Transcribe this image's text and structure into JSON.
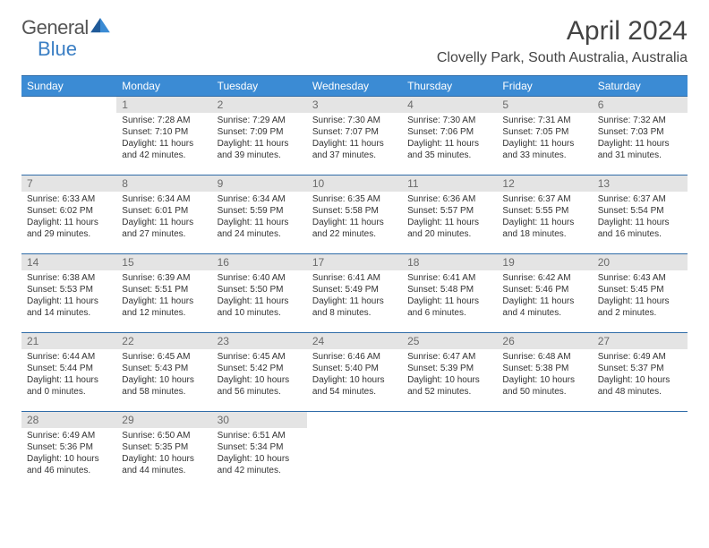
{
  "logo": {
    "text1": "General",
    "text2": "Blue"
  },
  "title": "April 2024",
  "subtitle": "Clovelly Park, South Australia, Australia",
  "weekdays": [
    "Sunday",
    "Monday",
    "Tuesday",
    "Wednesday",
    "Thursday",
    "Friday",
    "Saturday"
  ],
  "colors": {
    "header_bg": "#3b8bd4",
    "header_text": "#ffffff",
    "cell_border": "#2f6ca8",
    "daynum_bg": "#e4e4e4",
    "daynum_text": "#6b6b6b",
    "logo_accent": "#3b7fc4",
    "body_text": "#333333"
  },
  "grid": [
    [
      {
        "n": "",
        "sr": "",
        "ss": "",
        "dl": ""
      },
      {
        "n": "1",
        "sr": "Sunrise: 7:28 AM",
        "ss": "Sunset: 7:10 PM",
        "dl": "Daylight: 11 hours and 42 minutes."
      },
      {
        "n": "2",
        "sr": "Sunrise: 7:29 AM",
        "ss": "Sunset: 7:09 PM",
        "dl": "Daylight: 11 hours and 39 minutes."
      },
      {
        "n": "3",
        "sr": "Sunrise: 7:30 AM",
        "ss": "Sunset: 7:07 PM",
        "dl": "Daylight: 11 hours and 37 minutes."
      },
      {
        "n": "4",
        "sr": "Sunrise: 7:30 AM",
        "ss": "Sunset: 7:06 PM",
        "dl": "Daylight: 11 hours and 35 minutes."
      },
      {
        "n": "5",
        "sr": "Sunrise: 7:31 AM",
        "ss": "Sunset: 7:05 PM",
        "dl": "Daylight: 11 hours and 33 minutes."
      },
      {
        "n": "6",
        "sr": "Sunrise: 7:32 AM",
        "ss": "Sunset: 7:03 PM",
        "dl": "Daylight: 11 hours and 31 minutes."
      }
    ],
    [
      {
        "n": "7",
        "sr": "Sunrise: 6:33 AM",
        "ss": "Sunset: 6:02 PM",
        "dl": "Daylight: 11 hours and 29 minutes."
      },
      {
        "n": "8",
        "sr": "Sunrise: 6:34 AM",
        "ss": "Sunset: 6:01 PM",
        "dl": "Daylight: 11 hours and 27 minutes."
      },
      {
        "n": "9",
        "sr": "Sunrise: 6:34 AM",
        "ss": "Sunset: 5:59 PM",
        "dl": "Daylight: 11 hours and 24 minutes."
      },
      {
        "n": "10",
        "sr": "Sunrise: 6:35 AM",
        "ss": "Sunset: 5:58 PM",
        "dl": "Daylight: 11 hours and 22 minutes."
      },
      {
        "n": "11",
        "sr": "Sunrise: 6:36 AM",
        "ss": "Sunset: 5:57 PM",
        "dl": "Daylight: 11 hours and 20 minutes."
      },
      {
        "n": "12",
        "sr": "Sunrise: 6:37 AM",
        "ss": "Sunset: 5:55 PM",
        "dl": "Daylight: 11 hours and 18 minutes."
      },
      {
        "n": "13",
        "sr": "Sunrise: 6:37 AM",
        "ss": "Sunset: 5:54 PM",
        "dl": "Daylight: 11 hours and 16 minutes."
      }
    ],
    [
      {
        "n": "14",
        "sr": "Sunrise: 6:38 AM",
        "ss": "Sunset: 5:53 PM",
        "dl": "Daylight: 11 hours and 14 minutes."
      },
      {
        "n": "15",
        "sr": "Sunrise: 6:39 AM",
        "ss": "Sunset: 5:51 PM",
        "dl": "Daylight: 11 hours and 12 minutes."
      },
      {
        "n": "16",
        "sr": "Sunrise: 6:40 AM",
        "ss": "Sunset: 5:50 PM",
        "dl": "Daylight: 11 hours and 10 minutes."
      },
      {
        "n": "17",
        "sr": "Sunrise: 6:41 AM",
        "ss": "Sunset: 5:49 PM",
        "dl": "Daylight: 11 hours and 8 minutes."
      },
      {
        "n": "18",
        "sr": "Sunrise: 6:41 AM",
        "ss": "Sunset: 5:48 PM",
        "dl": "Daylight: 11 hours and 6 minutes."
      },
      {
        "n": "19",
        "sr": "Sunrise: 6:42 AM",
        "ss": "Sunset: 5:46 PM",
        "dl": "Daylight: 11 hours and 4 minutes."
      },
      {
        "n": "20",
        "sr": "Sunrise: 6:43 AM",
        "ss": "Sunset: 5:45 PM",
        "dl": "Daylight: 11 hours and 2 minutes."
      }
    ],
    [
      {
        "n": "21",
        "sr": "Sunrise: 6:44 AM",
        "ss": "Sunset: 5:44 PM",
        "dl": "Daylight: 11 hours and 0 minutes."
      },
      {
        "n": "22",
        "sr": "Sunrise: 6:45 AM",
        "ss": "Sunset: 5:43 PM",
        "dl": "Daylight: 10 hours and 58 minutes."
      },
      {
        "n": "23",
        "sr": "Sunrise: 6:45 AM",
        "ss": "Sunset: 5:42 PM",
        "dl": "Daylight: 10 hours and 56 minutes."
      },
      {
        "n": "24",
        "sr": "Sunrise: 6:46 AM",
        "ss": "Sunset: 5:40 PM",
        "dl": "Daylight: 10 hours and 54 minutes."
      },
      {
        "n": "25",
        "sr": "Sunrise: 6:47 AM",
        "ss": "Sunset: 5:39 PM",
        "dl": "Daylight: 10 hours and 52 minutes."
      },
      {
        "n": "26",
        "sr": "Sunrise: 6:48 AM",
        "ss": "Sunset: 5:38 PM",
        "dl": "Daylight: 10 hours and 50 minutes."
      },
      {
        "n": "27",
        "sr": "Sunrise: 6:49 AM",
        "ss": "Sunset: 5:37 PM",
        "dl": "Daylight: 10 hours and 48 minutes."
      }
    ],
    [
      {
        "n": "28",
        "sr": "Sunrise: 6:49 AM",
        "ss": "Sunset: 5:36 PM",
        "dl": "Daylight: 10 hours and 46 minutes."
      },
      {
        "n": "29",
        "sr": "Sunrise: 6:50 AM",
        "ss": "Sunset: 5:35 PM",
        "dl": "Daylight: 10 hours and 44 minutes."
      },
      {
        "n": "30",
        "sr": "Sunrise: 6:51 AM",
        "ss": "Sunset: 5:34 PM",
        "dl": "Daylight: 10 hours and 42 minutes."
      },
      {
        "n": "",
        "sr": "",
        "ss": "",
        "dl": ""
      },
      {
        "n": "",
        "sr": "",
        "ss": "",
        "dl": ""
      },
      {
        "n": "",
        "sr": "",
        "ss": "",
        "dl": ""
      },
      {
        "n": "",
        "sr": "",
        "ss": "",
        "dl": ""
      }
    ]
  ]
}
